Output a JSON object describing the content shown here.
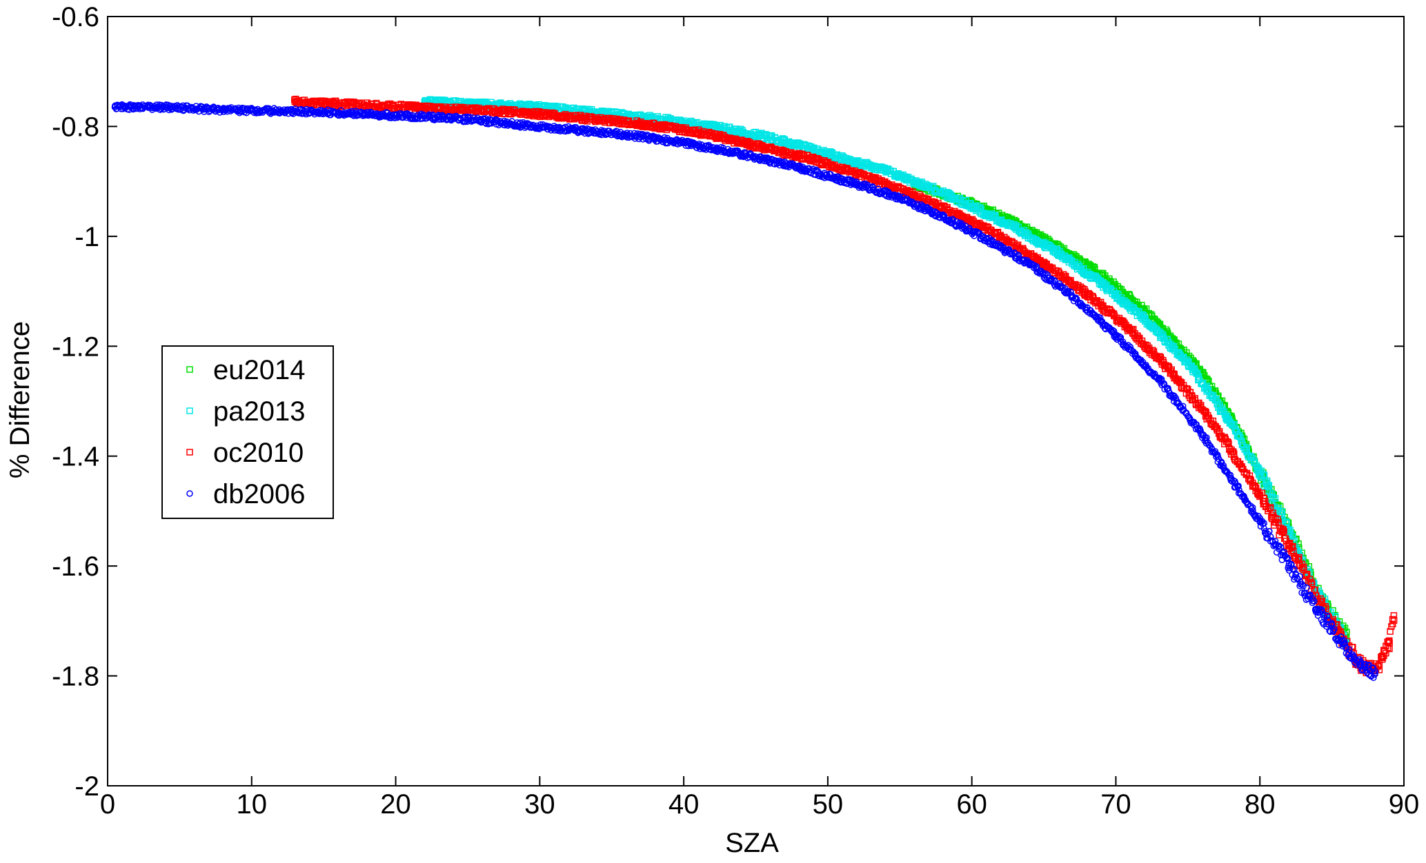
{
  "chart_data": {
    "type": "scatter",
    "title": "",
    "xlabel": "SZA",
    "ylabel": "% Difference",
    "xlim": [
      0,
      90
    ],
    "ylim": [
      -2,
      -0.6
    ],
    "xticks": [
      0,
      10,
      20,
      30,
      40,
      50,
      60,
      70,
      80,
      90
    ],
    "yticks": [
      -2,
      -1.8,
      -1.6,
      -1.4,
      -1.2,
      -1,
      -0.8,
      -0.6
    ],
    "ytick_labels": [
      "-2",
      "-1.8",
      "-1.6",
      "-1.4",
      "-1.2",
      "-1",
      "-0.8",
      "-0.6"
    ],
    "grid": false,
    "legend_position": "center-left",
    "series": [
      {
        "name": "eu2014",
        "marker": "square",
        "color": "#00dd00",
        "points": [
          [
            56,
            -0.905
          ],
          [
            60,
            -0.94
          ],
          [
            63,
            -0.975
          ],
          [
            66,
            -1.02
          ],
          [
            69,
            -1.07
          ],
          [
            72,
            -1.135
          ],
          [
            74,
            -1.19
          ],
          [
            76,
            -1.25
          ],
          [
            78,
            -1.33
          ],
          [
            80,
            -1.43
          ],
          [
            82,
            -1.53
          ],
          [
            84,
            -1.65
          ],
          [
            86,
            -1.73
          ]
        ]
      },
      {
        "name": "pa2013",
        "marker": "square",
        "color": "#00e5e5",
        "points": [
          [
            22,
            -0.755
          ],
          [
            26,
            -0.76
          ],
          [
            30,
            -0.765
          ],
          [
            34,
            -0.775
          ],
          [
            38,
            -0.785
          ],
          [
            42,
            -0.8
          ],
          [
            46,
            -0.82
          ],
          [
            50,
            -0.85
          ],
          [
            54,
            -0.88
          ],
          [
            57,
            -0.91
          ],
          [
            60,
            -0.945
          ],
          [
            63,
            -0.985
          ],
          [
            66,
            -1.03
          ],
          [
            69,
            -1.085
          ],
          [
            72,
            -1.15
          ],
          [
            75,
            -1.23
          ],
          [
            78,
            -1.34
          ],
          [
            80,
            -1.43
          ],
          [
            82,
            -1.54
          ],
          [
            84,
            -1.65
          ],
          [
            86,
            -1.74
          ]
        ]
      },
      {
        "name": "oc2010",
        "marker": "square",
        "color": "#ff0000",
        "points": [
          [
            13,
            -0.755
          ],
          [
            17,
            -0.76
          ],
          [
            21,
            -0.765
          ],
          [
            25,
            -0.77
          ],
          [
            29,
            -0.775
          ],
          [
            33,
            -0.785
          ],
          [
            37,
            -0.795
          ],
          [
            41,
            -0.81
          ],
          [
            45,
            -0.835
          ],
          [
            49,
            -0.86
          ],
          [
            53,
            -0.895
          ],
          [
            56,
            -0.925
          ],
          [
            59,
            -0.96
          ],
          [
            62,
            -1.0
          ],
          [
            65,
            -1.05
          ],
          [
            68,
            -1.105
          ],
          [
            71,
            -1.17
          ],
          [
            74,
            -1.25
          ],
          [
            77,
            -1.35
          ],
          [
            80,
            -1.47
          ],
          [
            82,
            -1.56
          ],
          [
            84,
            -1.66
          ],
          [
            86,
            -1.745
          ],
          [
            87,
            -1.78
          ],
          [
            88,
            -1.79
          ],
          [
            88.5,
            -1.77
          ],
          [
            89,
            -1.74
          ],
          [
            89.3,
            -1.69
          ]
        ]
      },
      {
        "name": "db2006",
        "marker": "circle",
        "color": "#0000ff",
        "points": [
          [
            0.5,
            -0.765
          ],
          [
            4,
            -0.765
          ],
          [
            8,
            -0.77
          ],
          [
            12,
            -0.772
          ],
          [
            16,
            -0.775
          ],
          [
            20,
            -0.78
          ],
          [
            24,
            -0.785
          ],
          [
            28,
            -0.795
          ],
          [
            32,
            -0.805
          ],
          [
            36,
            -0.815
          ],
          [
            40,
            -0.83
          ],
          [
            44,
            -0.85
          ],
          [
            48,
            -0.875
          ],
          [
            52,
            -0.905
          ],
          [
            55,
            -0.93
          ],
          [
            58,
            -0.965
          ],
          [
            61,
            -1.005
          ],
          [
            64,
            -1.05
          ],
          [
            67,
            -1.11
          ],
          [
            70,
            -1.18
          ],
          [
            73,
            -1.26
          ],
          [
            76,
            -1.36
          ],
          [
            78,
            -1.44
          ],
          [
            80,
            -1.52
          ],
          [
            82,
            -1.6
          ],
          [
            84,
            -1.68
          ],
          [
            86,
            -1.75
          ],
          [
            87,
            -1.78
          ],
          [
            88,
            -1.795
          ]
        ]
      }
    ]
  }
}
